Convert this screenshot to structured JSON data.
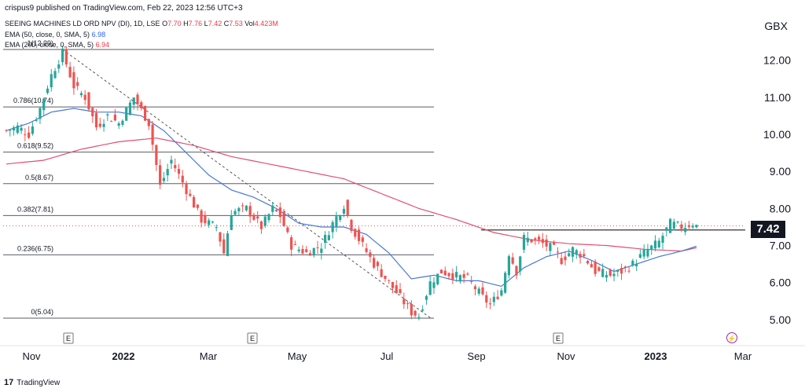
{
  "header": {
    "publisher": "crispus9 published on TradingView.com, Feb 22, 2023 12:56 UTC+3",
    "symbol": "SEEING MACHINES LD ORD NPV (DI), 1D, LSE",
    "ohlc": {
      "o_label": "O",
      "o": "7.70",
      "h_label": "H",
      "h": "7.76",
      "l_label": "L",
      "l": "7.42",
      "c_label": "C",
      "c": "7.53",
      "vol_label": "Vol",
      "vol": "4.423M"
    },
    "ema50": {
      "label": "EMA (50, close, 0, SMA, 5)",
      "value": "6.98"
    },
    "ema200": {
      "label": "EMA (200, close, 0, SMA, 5)",
      "value": "6.94"
    }
  },
  "currency": "GBX",
  "footer": {
    "brand": "TradingView",
    "logo": "17"
  },
  "colors": {
    "up": "#26a69a",
    "down": "#ef5350",
    "ema50": "#4a78d8",
    "ema200": "#e05070",
    "fib": "#5a5e6a",
    "trend": "#555555"
  },
  "chart_data": {
    "type": "candlestick",
    "y_axis": {
      "ylim": [
        4.6,
        12.9
      ],
      "ticks": [
        "12.00",
        "11.00",
        "10.00",
        "9.00",
        "8.00",
        "7.00",
        "6.00",
        "5.00"
      ]
    },
    "x_axis": {
      "ticks": [
        "Nov",
        "2022",
        "Mar",
        "May",
        "Jul",
        "Sep",
        "Nov",
        "2023",
        "Mar"
      ]
    },
    "last_price": "7.42",
    "resistance_level": 7.42,
    "fibonacci": [
      {
        "label": "1(12.29)",
        "level": 12.29
      },
      {
        "label": "0.786(10.74)",
        "level": 10.74
      },
      {
        "label": "0.618(9.52)",
        "level": 9.52
      },
      {
        "label": "0.5(8.67)",
        "level": 8.67
      },
      {
        "label": "0.382(7.81)",
        "level": 7.81
      },
      {
        "label": "0.236(6.75)",
        "level": 6.75
      },
      {
        "label": "0(5.04)",
        "level": 5.04
      }
    ],
    "trendline": {
      "from": [
        "late Nov 2021",
        12.29
      ],
      "to": [
        "mid Jul 2022",
        5.04
      ]
    },
    "event_markers": [
      {
        "label": "E",
        "at": "Nov 2021"
      },
      {
        "label": "E",
        "at": "Apr 2022"
      },
      {
        "label": "E",
        "at": "Oct 2022"
      },
      {
        "label": "⚡",
        "at": "Feb 2023"
      }
    ],
    "close_anchors": [
      [
        0,
        10.1
      ],
      [
        3,
        10.2
      ],
      [
        6,
        10.0
      ],
      [
        9,
        10.7
      ],
      [
        12,
        11.6
      ],
      [
        15,
        12.2
      ],
      [
        18,
        11.3
      ],
      [
        21,
        11.0
      ],
      [
        24,
        10.2
      ],
      [
        27,
        10.5
      ],
      [
        30,
        10.3
      ],
      [
        34,
        11.0
      ],
      [
        38,
        10.3
      ],
      [
        41,
        8.6
      ],
      [
        44,
        9.3
      ],
      [
        48,
        8.5
      ],
      [
        52,
        7.7
      ],
      [
        56,
        7.5
      ],
      [
        58,
        6.8
      ],
      [
        60,
        7.9
      ],
      [
        64,
        8.0
      ],
      [
        68,
        7.5
      ],
      [
        71,
        8.0
      ],
      [
        73,
        7.8
      ],
      [
        76,
        7.0
      ],
      [
        80,
        6.8
      ],
      [
        84,
        7.0
      ],
      [
        87,
        7.6
      ],
      [
        90,
        8.1
      ],
      [
        92,
        7.5
      ],
      [
        95,
        7.0
      ],
      [
        98,
        6.5
      ],
      [
        102,
        6.0
      ],
      [
        105,
        5.6
      ],
      [
        108,
        5.2
      ],
      [
        110,
        5.1
      ],
      [
        113,
        6.0
      ],
      [
        116,
        6.3
      ],
      [
        119,
        6.2
      ],
      [
        123,
        6.1
      ],
      [
        127,
        5.6
      ],
      [
        129,
        5.4
      ],
      [
        132,
        5.8
      ],
      [
        134,
        6.8
      ],
      [
        136,
        6.3
      ],
      [
        138,
        7.2
      ],
      [
        142,
        7.1
      ],
      [
        146,
        6.9
      ],
      [
        148,
        6.6
      ],
      [
        151,
        6.9
      ],
      [
        154,
        6.7
      ],
      [
        157,
        6.3
      ],
      [
        161,
        6.2
      ],
      [
        164,
        6.3
      ],
      [
        167,
        6.5
      ],
      [
        170,
        6.8
      ],
      [
        174,
        7.1
      ],
      [
        177,
        7.6
      ],
      [
        180,
        7.5
      ],
      [
        183,
        7.6
      ],
      [
        184,
        7.53
      ]
    ],
    "ema50_anchors": [
      [
        0,
        10.1
      ],
      [
        6,
        10.3
      ],
      [
        12,
        10.6
      ],
      [
        18,
        10.7
      ],
      [
        24,
        10.6
      ],
      [
        30,
        10.6
      ],
      [
        36,
        10.5
      ],
      [
        42,
        10.1
      ],
      [
        48,
        9.5
      ],
      [
        54,
        8.9
      ],
      [
        60,
        8.5
      ],
      [
        66,
        8.3
      ],
      [
        72,
        8.0
      ],
      [
        78,
        7.6
      ],
      [
        84,
        7.5
      ],
      [
        90,
        7.5
      ],
      [
        96,
        7.3
      ],
      [
        102,
        6.8
      ],
      [
        108,
        6.1
      ],
      [
        114,
        6.2
      ],
      [
        120,
        6.05
      ],
      [
        126,
        6.05
      ],
      [
        132,
        5.9
      ],
      [
        138,
        6.4
      ],
      [
        144,
        6.7
      ],
      [
        150,
        6.85
      ],
      [
        156,
        6.6
      ],
      [
        162,
        6.3
      ],
      [
        168,
        6.5
      ],
      [
        174,
        6.7
      ],
      [
        180,
        6.85
      ],
      [
        184,
        6.98
      ]
    ],
    "ema200_anchors": [
      [
        0,
        9.2
      ],
      [
        10,
        9.3
      ],
      [
        20,
        9.6
      ],
      [
        30,
        9.8
      ],
      [
        40,
        9.9
      ],
      [
        50,
        9.7
      ],
      [
        60,
        9.4
      ],
      [
        70,
        9.2
      ],
      [
        80,
        9.0
      ],
      [
        90,
        8.8
      ],
      [
        100,
        8.4
      ],
      [
        110,
        8.0
      ],
      [
        120,
        7.7
      ],
      [
        130,
        7.35
      ],
      [
        140,
        7.15
      ],
      [
        150,
        7.05
      ],
      [
        160,
        7.0
      ],
      [
        170,
        6.9
      ],
      [
        180,
        6.85
      ],
      [
        184,
        6.94
      ]
    ]
  }
}
